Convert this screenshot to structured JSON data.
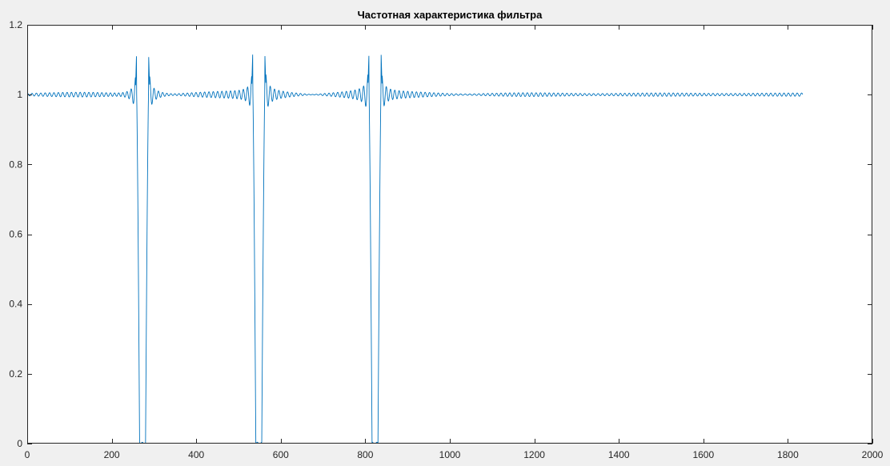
{
  "chart_data": {
    "type": "line",
    "title": "Частотная характеристика фильтра",
    "xlabel": "",
    "ylabel": "",
    "xlim": [
      0,
      2000
    ],
    "ylim": [
      0,
      1.2
    ],
    "xticks": [
      "0",
      "200",
      "400",
      "600",
      "800",
      "1000",
      "1200",
      "1400",
      "1600",
      "1800",
      "2000"
    ],
    "yticks": [
      "0",
      "0.2",
      "0.4",
      "0.6",
      "0.8",
      "1",
      "1.2"
    ],
    "grid": false,
    "colors": {
      "line": "#0072BD",
      "axes_bg": "#ffffff",
      "figure_bg": "#f0f0f0",
      "axis": "#262626"
    },
    "series": [
      {
        "x_range": [
          0,
          1835
        ],
        "baseline": 1.0,
        "notches": [
          {
            "center": 273,
            "stop_width": 14,
            "peak_overshoot": 1.13,
            "ripple_amplitude": 0.03
          },
          {
            "center": 548,
            "stop_width": 14,
            "peak_overshoot": 1.13,
            "ripple_amplitude": 0.03
          },
          {
            "center": 823,
            "stop_width": 14,
            "peak_overshoot": 1.13,
            "ripple_amplitude": 0.03
          }
        ]
      }
    ]
  }
}
